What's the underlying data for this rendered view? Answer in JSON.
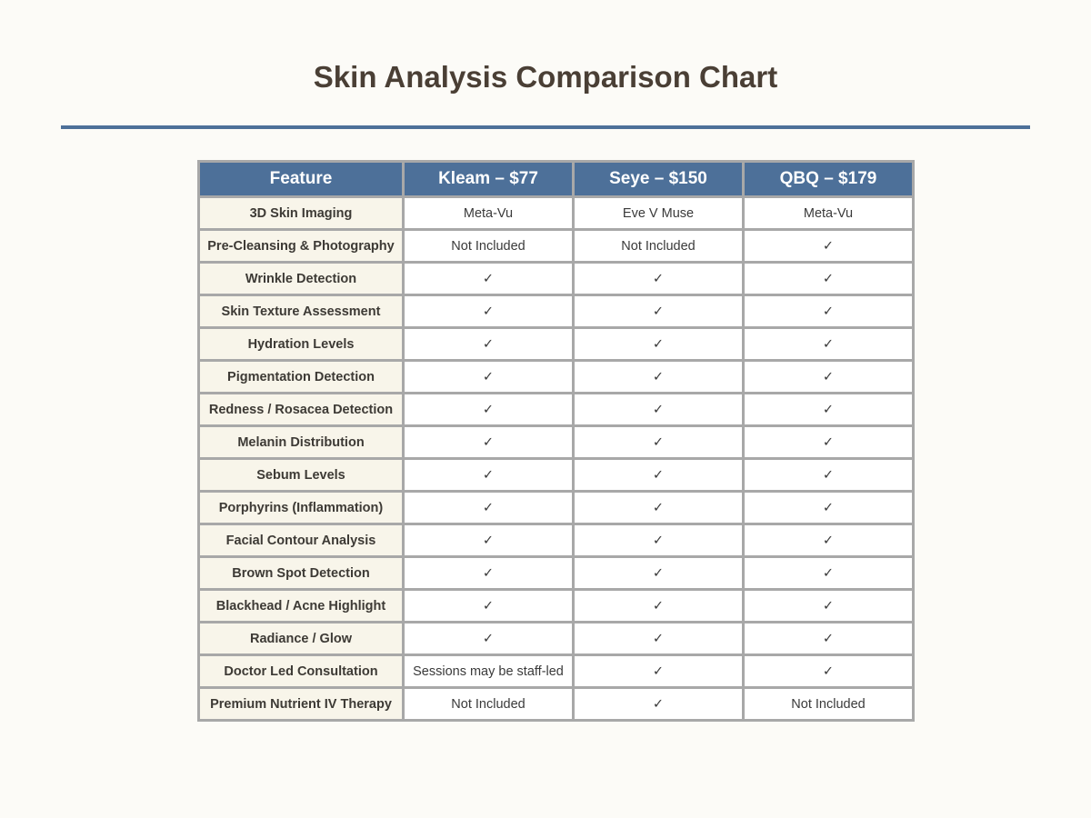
{
  "title": "Skin Analysis Comparison Chart",
  "colors": {
    "background": "#fcfbf7",
    "header": "#4d7099",
    "title_text": "#4a3f35",
    "feature_cell": "#f8f5ea",
    "border": "#a8a8a8"
  },
  "table": {
    "headers": [
      "Feature",
      "Kleam – $77",
      "Seye – $150",
      "QBQ – $179"
    ],
    "rows": [
      {
        "feature": "3D Skin Imaging",
        "values": [
          "Meta-Vu",
          "Eve V Muse",
          "Meta-Vu"
        ]
      },
      {
        "feature": "Pre-Cleansing & Photography",
        "values": [
          "Not Included",
          "Not Included",
          "✓"
        ]
      },
      {
        "feature": "Wrinkle Detection",
        "values": [
          "✓",
          "✓",
          "✓"
        ]
      },
      {
        "feature": "Skin Texture Assessment",
        "values": [
          "✓",
          "✓",
          "✓"
        ]
      },
      {
        "feature": "Hydration Levels",
        "values": [
          "✓",
          "✓",
          "✓"
        ]
      },
      {
        "feature": "Pigmentation Detection",
        "values": [
          "✓",
          "✓",
          "✓"
        ]
      },
      {
        "feature": "Redness / Rosacea Detection",
        "values": [
          "✓",
          "✓",
          "✓"
        ]
      },
      {
        "feature": "Melanin Distribution",
        "values": [
          "✓",
          "✓",
          "✓"
        ]
      },
      {
        "feature": "Sebum Levels",
        "values": [
          "✓",
          "✓",
          "✓"
        ]
      },
      {
        "feature": "Porphyrins (Inflammation)",
        "values": [
          "✓",
          "✓",
          "✓"
        ]
      },
      {
        "feature": "Facial Contour Analysis",
        "values": [
          "✓",
          "✓",
          "✓"
        ]
      },
      {
        "feature": "Brown Spot Detection",
        "values": [
          "✓",
          "✓",
          "✓"
        ]
      },
      {
        "feature": "Blackhead / Acne Highlight",
        "values": [
          "✓",
          "✓",
          "✓"
        ]
      },
      {
        "feature": "Radiance / Glow",
        "values": [
          "✓",
          "✓",
          "✓"
        ]
      },
      {
        "feature": "Doctor Led Consultation",
        "values": [
          "Sessions may be staff-led",
          "✓",
          "✓"
        ]
      },
      {
        "feature": "Premium Nutrient IV Therapy",
        "values": [
          "Not Included",
          "✓",
          "Not Included"
        ]
      }
    ]
  }
}
